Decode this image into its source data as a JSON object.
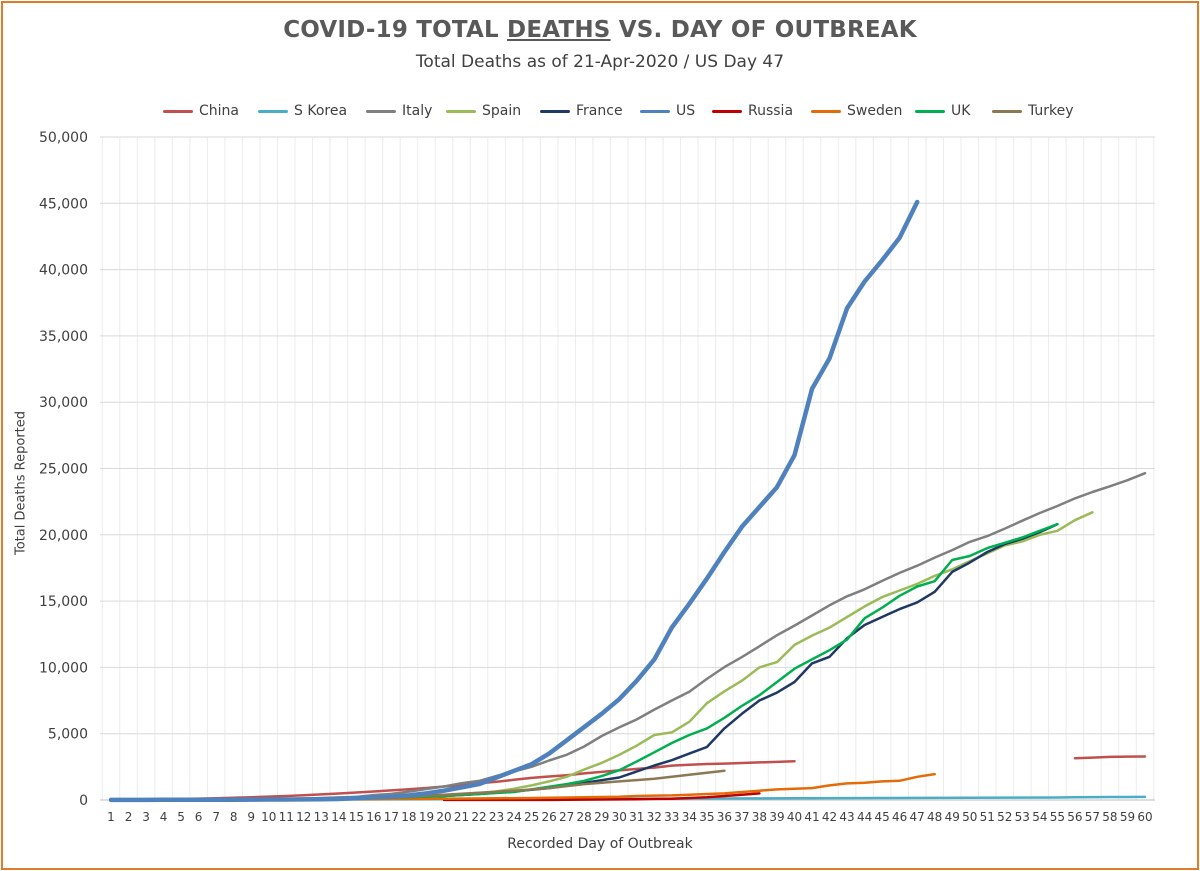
{
  "title_parts": {
    "before": "COVID-19 TOTAL ",
    "emph": "DEATHS",
    "after": " VS. DAY OF OUTBREAK"
  },
  "subtitle": "Total Deaths as of 21-Apr-2020 / US Day 47",
  "chart_data": {
    "type": "line",
    "xlabel": "Recorded Day of Outbreak",
    "ylabel": "Total Deaths Reported",
    "ylim": [
      0,
      50000
    ],
    "yticks": [
      0,
      5000,
      10000,
      15000,
      20000,
      25000,
      30000,
      35000,
      40000,
      45000,
      50000
    ],
    "ytick_labels": [
      "0",
      "5,000",
      "10,000",
      "15,000",
      "20,000",
      "25,000",
      "30,000",
      "35,000",
      "40,000",
      "45,000",
      "50,000"
    ],
    "xlim": [
      1,
      60
    ],
    "grid": true,
    "legend_position": "top",
    "series": [
      {
        "name": "China",
        "color": "#c0504d",
        "width": 2.5,
        "x": [
          1,
          2,
          3,
          4,
          5,
          6,
          7,
          8,
          9,
          10,
          11,
          12,
          13,
          14,
          15,
          16,
          17,
          18,
          19,
          20,
          21,
          22,
          23,
          24,
          25,
          26,
          27,
          28,
          29,
          30,
          31,
          32,
          33,
          34,
          35,
          36,
          37,
          38,
          39,
          40,
          56,
          57,
          58,
          59,
          60
        ],
        "y": [
          17,
          25,
          41,
          56,
          80,
          106,
          132,
          170,
          213,
          259,
          304,
          361,
          425,
          490,
          563,
          638,
          724,
          813,
          908,
          1016,
          1113,
          1259,
          1380,
          1523,
          1665,
          1770,
          1868,
          2004,
          2118,
          2236,
          2345,
          2442,
          2592,
          2663,
          2715,
          2744,
          2788,
          2835,
          2870,
          2915,
          3150,
          3200,
          3250,
          3270,
          3280
        ]
      },
      {
        "name": "S Korea",
        "color": "#4bacc6",
        "width": 2.5,
        "x": [
          1,
          5,
          10,
          15,
          20,
          25,
          30,
          35,
          40,
          45,
          50,
          55,
          56,
          57,
          58,
          59,
          60
        ],
        "y": [
          1,
          5,
          12,
          35,
          60,
          75,
          90,
          110,
          130,
          150,
          170,
          190,
          210,
          220,
          225,
          230,
          235
        ]
      },
      {
        "name": "Italy",
        "color": "#7f7f7f",
        "width": 2.5,
        "x": [
          1,
          2,
          3,
          4,
          5,
          6,
          7,
          8,
          9,
          10,
          11,
          12,
          13,
          14,
          15,
          16,
          17,
          18,
          19,
          20,
          21,
          22,
          23,
          24,
          25,
          26,
          27,
          28,
          29,
          30,
          31,
          32,
          33,
          34,
          35,
          36,
          37,
          38,
          39,
          40,
          41,
          42,
          43,
          44,
          45,
          46,
          47,
          48,
          49,
          50,
          51,
          52,
          53,
          54,
          55,
          56,
          57,
          58,
          59,
          60
        ],
        "y": [
          2,
          3,
          7,
          10,
          12,
          17,
          21,
          29,
          34,
          52,
          79,
          107,
          148,
          197,
          233,
          366,
          463,
          631,
          827,
          1016,
          1266,
          1441,
          1809,
          2158,
          2503,
          2978,
          3405,
          4032,
          4825,
          5476,
          6077,
          6820,
          7503,
          8165,
          9134,
          10023,
          10779,
          11591,
          12428,
          13155,
          13915,
          14681,
          15362,
          15887,
          16523,
          17127,
          17669,
          18279,
          18849,
          19468,
          19899,
          20465,
          21067,
          21645,
          22170,
          22745,
          23227,
          23660,
          24114,
          24648
        ]
      },
      {
        "name": "Spain",
        "color": "#9bbb59",
        "width": 2.5,
        "x": [
          1,
          5,
          10,
          15,
          18,
          20,
          22,
          23,
          24,
          25,
          26,
          27,
          28,
          29,
          30,
          31,
          32,
          33,
          34,
          35,
          36,
          37,
          38,
          39,
          40,
          41,
          42,
          43,
          44,
          45,
          46,
          47,
          48,
          49,
          50,
          51,
          52,
          53,
          54,
          55,
          56,
          57
        ],
        "y": [
          1,
          10,
          35,
          120,
          200,
          300,
          500,
          650,
          850,
          1100,
          1400,
          1750,
          2300,
          2800,
          3400,
          4100,
          4900,
          5100,
          5900,
          7300,
          8200,
          9000,
          10000,
          10400,
          11700,
          12400,
          13000,
          13800,
          14600,
          15300,
          15800,
          16300,
          16900,
          17400,
          18000,
          18600,
          19200,
          19500,
          20000,
          20300,
          21100,
          21700
        ]
      },
      {
        "name": "France",
        "color": "#1f3864",
        "width": 2.5,
        "x": [
          1,
          5,
          10,
          15,
          20,
          22,
          24,
          26,
          28,
          30,
          32,
          33,
          34,
          35,
          36,
          37,
          38,
          39,
          40,
          41,
          42,
          43,
          44,
          45,
          46,
          47,
          48,
          49,
          50,
          51,
          52,
          53,
          54,
          55
        ],
        "y": [
          1,
          5,
          20,
          80,
          300,
          450,
          650,
          900,
          1300,
          1700,
          2600,
          3000,
          3500,
          4000,
          5400,
          6500,
          7500,
          8100,
          8900,
          10300,
          10800,
          12200,
          13200,
          13800,
          14400,
          14900,
          15700,
          17200,
          17900,
          18700,
          19300,
          19700,
          20200,
          20800
        ]
      },
      {
        "name": "US",
        "color": "#4f81bd",
        "width": 4.5,
        "x": [
          1,
          2,
          3,
          4,
          5,
          6,
          7,
          8,
          9,
          10,
          11,
          12,
          13,
          14,
          15,
          16,
          17,
          18,
          19,
          20,
          21,
          22,
          23,
          24,
          25,
          26,
          27,
          28,
          29,
          30,
          31,
          32,
          33,
          34,
          35,
          36,
          37,
          38,
          39,
          40,
          41,
          42,
          43,
          44,
          45,
          46,
          47
        ],
        "y": [
          6,
          9,
          11,
          12,
          15,
          19,
          22,
          26,
          30,
          38,
          41,
          48,
          58,
          73,
          150,
          200,
          250,
          350,
          500,
          700,
          950,
          1200,
          1700,
          2200,
          2700,
          3500,
          4500,
          5500,
          6500,
          7600,
          9000,
          10600,
          13000,
          14800,
          16700,
          18700,
          20600,
          22100,
          23600,
          26000,
          31000,
          33300,
          37100,
          39100,
          40700,
          42400,
          45100
        ]
      },
      {
        "name": "Russia",
        "color": "#c00000",
        "width": 2.5,
        "x": [
          1,
          20,
          26,
          28,
          30,
          31,
          32,
          33,
          34,
          35,
          36,
          37,
          38
        ],
        "y": [
          1,
          5,
          10,
          30,
          45,
          60,
          80,
          100,
          150,
          200,
          300,
          400,
          500
        ]
      },
      {
        "name": "Sweden",
        "color": "#e36c09",
        "width": 2.5,
        "x": [
          1,
          10,
          15,
          20,
          25,
          30,
          31,
          32,
          33,
          34,
          35,
          36,
          37,
          38,
          39,
          40,
          41,
          42,
          43,
          44,
          45,
          46,
          47,
          48
        ],
        "y": [
          1,
          20,
          50,
          100,
          150,
          250,
          300,
          330,
          350,
          400,
          450,
          500,
          600,
          700,
          800,
          850,
          900,
          1100,
          1250,
          1300,
          1400,
          1450,
          1750,
          1950
        ]
      },
      {
        "name": "UK",
        "color": "#00b050",
        "width": 2.5,
        "x": [
          1,
          5,
          10,
          15,
          20,
          22,
          24,
          25,
          26,
          27,
          28,
          29,
          30,
          31,
          32,
          33,
          34,
          35,
          36,
          37,
          38,
          39,
          40,
          41,
          42,
          43,
          44,
          45,
          46,
          47,
          48,
          49,
          50,
          51,
          52,
          53,
          54,
          55
        ],
        "y": [
          1,
          5,
          20,
          80,
          300,
          450,
          600,
          800,
          1000,
          1200,
          1450,
          1800,
          2250,
          2900,
          3600,
          4300,
          4900,
          5400,
          6200,
          7100,
          7900,
          8900,
          9900,
          10600,
          11300,
          12100,
          13700,
          14500,
          15400,
          16100,
          16500,
          18100,
          18400,
          19000,
          19400,
          19800,
          20300,
          20800
        ]
      },
      {
        "name": "Turkey",
        "color": "#8c7853",
        "width": 2.5,
        "x": [
          1,
          5,
          10,
          15,
          18,
          20,
          22,
          24,
          26,
          28,
          30,
          32,
          34,
          36
        ],
        "y": [
          1,
          10,
          50,
          150,
          250,
          400,
          550,
          700,
          900,
          1200,
          1400,
          1600,
          1900,
          2200
        ]
      }
    ]
  }
}
